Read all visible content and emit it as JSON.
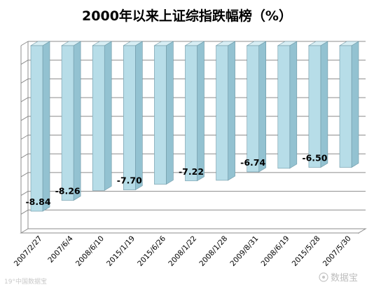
{
  "chart_data": {
    "type": "bar",
    "title": "2000年以来上证综指跌幅榜（%）",
    "categories": [
      "2007/2/27",
      "2007/6/4",
      "2008/6/10",
      "2015/1/19",
      "2015/6/26",
      "2008/1/22",
      "2008/1/28",
      "2009/8/31",
      "2008/6/19",
      "2015/5/28",
      "2007/5/30"
    ],
    "values": [
      -8.84,
      -8.26,
      -7.73,
      -7.7,
      -7.4,
      -7.22,
      -7.19,
      -6.74,
      -6.55,
      -6.5,
      -6.5
    ],
    "data_labels": [
      {
        "index": 0,
        "text": "-8.84"
      },
      {
        "index": 1,
        "text": "-8.26"
      },
      {
        "index": 3,
        "text": "-7.70"
      },
      {
        "index": 5,
        "text": "-7.22"
      },
      {
        "index": 7,
        "text": "-6.74"
      },
      {
        "index": 9,
        "text": "-6.50"
      }
    ],
    "ylim": [
      -10,
      0
    ],
    "grid": true,
    "legend": "none",
    "colors": {
      "bar_front": "#b7dde8",
      "bar_side": "#93c2d1",
      "bar_top": "#d8eef4",
      "grid": "#8c8c8c"
    }
  },
  "watermarks": {
    "left": "19°中国数据宝",
    "right": "数据宝"
  }
}
